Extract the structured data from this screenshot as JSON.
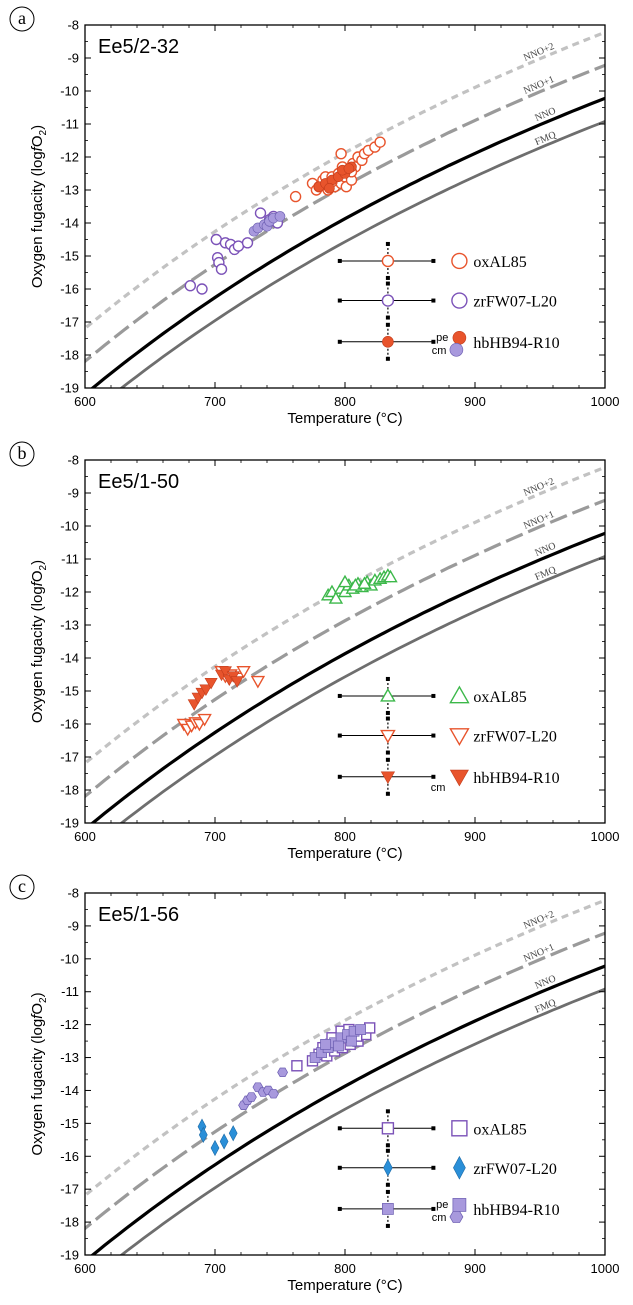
{
  "colors": {
    "orange": "#e8542c",
    "purple": "#7b52b8",
    "purple_fill": "#a899dd",
    "green": "#3cb84a",
    "blue": "#2a8fd8",
    "buffer_nno": "#000000",
    "buffer_fmq": "#6e6e6e",
    "buffer_nno1": "#9a9a9a",
    "buffer_nno2": "#c2c2c2"
  },
  "chart_data": [
    {
      "type": "scatter",
      "panel_letter": "a",
      "title": "Ee5/2-32",
      "xlabel": "Temperature (°C)",
      "ylabel_main": "Oxygen fugacity (log",
      "ylabel_italic": "f",
      "ylabel_o": "O",
      "ylabel_sub": "2",
      "ylabel_close": ")",
      "xlim": [
        600,
        1000
      ],
      "ylim": [
        -19,
        -8
      ],
      "xticks": [
        "600",
        "700",
        "800",
        "900",
        "1000"
      ],
      "yticks": [
        "-19",
        "-18",
        "-17",
        "-16",
        "-15",
        "-14",
        "-13",
        "-12",
        "-11",
        "-10",
        "-9",
        "-8"
      ],
      "buffers": [
        {
          "name": "NNO+2",
          "offset": 2
        },
        {
          "name": "NNO+1",
          "offset": 1
        },
        {
          "name": "NNO",
          "offset": 0
        },
        {
          "name": "FMQ",
          "offset": -0.7
        }
      ],
      "legend": [
        {
          "label": "oxAL85",
          "y": -15.15,
          "cross_marker": "circle-open",
          "cross_color": "orange",
          "markers": [
            "circle-open"
          ],
          "mcolor": "orange"
        },
        {
          "label": "zrFW07-L20",
          "y": -16.35,
          "cross_marker": "circle-open",
          "cross_color": "purple",
          "markers": [
            "circle-open"
          ],
          "mcolor": "purple"
        },
        {
          "label": "hbHB94-R10",
          "y": -17.6,
          "cross_marker": "circle-fill",
          "cross_color": "orange",
          "markers": [
            "circle-fill",
            "circle-fill-purple"
          ],
          "mcolor": "orange",
          "tag1": "pe",
          "tag2": "cm"
        }
      ],
      "series": [
        {
          "name": "oxAL85",
          "marker": "circle-open",
          "color": "orange",
          "x": [
            762,
            775,
            778,
            780,
            783,
            785,
            787,
            788,
            790,
            792,
            793,
            795,
            797,
            798,
            800,
            801,
            803,
            805,
            806,
            808,
            810,
            813,
            815,
            818,
            823,
            827,
            797,
            790,
            786,
            805
          ],
          "y": [
            -13.2,
            -12.8,
            -13.0,
            -12.9,
            -12.7,
            -12.6,
            -13.0,
            -12.8,
            -12.6,
            -12.9,
            -12.7,
            -12.5,
            -12.8,
            -12.3,
            -12.6,
            -12.9,
            -12.5,
            -12.7,
            -12.2,
            -12.3,
            -12.0,
            -12.1,
            -11.9,
            -11.8,
            -11.7,
            -11.55,
            -11.9,
            -12.75,
            -12.85,
            -12.45
          ]
        },
        {
          "name": "hb pe",
          "marker": "circle-fill",
          "color": "orange",
          "x": [
            780,
            785,
            790,
            795,
            800,
            805,
            788,
            798,
            803
          ],
          "y": [
            -12.9,
            -12.8,
            -12.7,
            -12.6,
            -12.5,
            -12.3,
            -12.95,
            -12.4,
            -12.35
          ]
        },
        {
          "name": "zrFW07-L20",
          "marker": "circle-open",
          "color": "purple",
          "x": [
            681,
            690,
            701,
            702,
            703,
            705,
            708,
            712,
            715,
            718,
            725,
            735,
            742,
            745,
            748
          ],
          "y": [
            -15.9,
            -16.0,
            -14.5,
            -15.05,
            -15.2,
            -15.4,
            -14.6,
            -14.65,
            -14.8,
            -14.7,
            -14.6,
            -13.7,
            -13.9,
            -13.8,
            -14.0
          ]
        },
        {
          "name": "hb cm",
          "marker": "circle-fill",
          "color": "purple_fill",
          "x": [
            730,
            733,
            738,
            740,
            742,
            745,
            750
          ],
          "y": [
            -14.25,
            -14.15,
            -14.05,
            -14.1,
            -13.95,
            -13.85,
            -13.8
          ]
        }
      ]
    },
    {
      "type": "scatter",
      "panel_letter": "b",
      "title": "Ee5/1-50",
      "xlabel": "Temperature (°C)",
      "ylabel_main": "Oxygen fugacity (log",
      "ylabel_italic": "f",
      "ylabel_o": "O",
      "ylabel_sub": "2",
      "ylabel_close": ")",
      "xlim": [
        600,
        1000
      ],
      "ylim": [
        -19,
        -8
      ],
      "xticks": [
        "600",
        "700",
        "800",
        "900",
        "1000"
      ],
      "yticks": [
        "-19",
        "-18",
        "-17",
        "-16",
        "-15",
        "-14",
        "-13",
        "-12",
        "-11",
        "-10",
        "-9",
        "-8"
      ],
      "buffers": [
        {
          "name": "NNO+2",
          "offset": 2
        },
        {
          "name": "NNO+1",
          "offset": 1
        },
        {
          "name": "NNO",
          "offset": 0
        },
        {
          "name": "FMQ",
          "offset": -0.7
        }
      ],
      "legend": [
        {
          "label": "oxAL85",
          "y": -15.15,
          "cross_marker": "triangle-up-open",
          "cross_color": "green",
          "markers": [
            "triangle-up-open"
          ],
          "mcolor": "green"
        },
        {
          "label": "zrFW07-L20",
          "y": -16.35,
          "cross_marker": "triangle-down-open",
          "cross_color": "orange",
          "markers": [
            "triangle-down-open"
          ],
          "mcolor": "orange"
        },
        {
          "label": "hbHB94-R10",
          "y": -17.6,
          "cross_marker": "triangle-down-fill",
          "cross_color": "orange",
          "markers": [
            "triangle-down-fill"
          ],
          "mcolor": "orange",
          "tag2": "cm"
        }
      ],
      "series": [
        {
          "name": "oxAL85",
          "marker": "triangle-up-open",
          "color": "green",
          "x": [
            787,
            790,
            793,
            797,
            800,
            803,
            806,
            810,
            813,
            817,
            820,
            823,
            827,
            830,
            833,
            835,
            800,
            808,
            815
          ],
          "y": [
            -12.1,
            -12.0,
            -12.2,
            -11.9,
            -12.0,
            -11.8,
            -11.9,
            -11.75,
            -11.85,
            -11.7,
            -11.8,
            -11.65,
            -11.6,
            -11.55,
            -11.5,
            -11.55,
            -11.7,
            -11.8,
            -11.75
          ]
        },
        {
          "name": "zrFW07-L20",
          "marker": "triangle-down-open",
          "color": "orange",
          "x": [
            676,
            679,
            682,
            685,
            688,
            692,
            705,
            708,
            712,
            718,
            722,
            733
          ],
          "y": [
            -16.0,
            -16.15,
            -16.05,
            -15.95,
            -16.0,
            -15.85,
            -14.4,
            -14.55,
            -14.5,
            -14.6,
            -14.4,
            -14.7
          ]
        },
        {
          "name": "hbHB94-R10",
          "marker": "triangle-down-fill",
          "color": "orange",
          "x": [
            684,
            687,
            690,
            693,
            697,
            705,
            708,
            711,
            714,
            717
          ],
          "y": [
            -15.4,
            -15.2,
            -15.05,
            -14.95,
            -14.75,
            -14.5,
            -14.4,
            -14.65,
            -14.55,
            -14.7
          ]
        }
      ]
    },
    {
      "type": "scatter",
      "panel_letter": "c",
      "title": "Ee5/1-56",
      "xlabel": "Temperature (°C)",
      "ylabel_main": "Oxygen fugacity (log",
      "ylabel_italic": "f",
      "ylabel_o": "O",
      "ylabel_sub": "2",
      "ylabel_close": ")",
      "xlim": [
        600,
        1000
      ],
      "ylim": [
        -19,
        -8
      ],
      "xticks": [
        "600",
        "700",
        "800",
        "900",
        "1000"
      ],
      "yticks": [
        "-19",
        "-18",
        "-17",
        "-16",
        "-15",
        "-14",
        "-13",
        "-12",
        "-11",
        "-10",
        "-9",
        "-8"
      ],
      "buffers": [
        {
          "name": "NNO+2",
          "offset": 2
        },
        {
          "name": "NNO+1",
          "offset": 1
        },
        {
          "name": "NNO",
          "offset": 0
        },
        {
          "name": "FMQ",
          "offset": -0.7
        }
      ],
      "legend": [
        {
          "label": "oxAL85",
          "y": -15.15,
          "cross_marker": "square-open",
          "cross_color": "purple",
          "markers": [
            "square-open"
          ],
          "mcolor": "purple"
        },
        {
          "label": "zrFW07-L20",
          "y": -16.35,
          "cross_marker": "diamond-fill",
          "cross_color": "blue",
          "markers": [
            "diamond-fill"
          ],
          "mcolor": "blue"
        },
        {
          "label": "hbHB94-R10",
          "y": -17.6,
          "cross_marker": "square-fill",
          "cross_color": "purple_fill",
          "markers": [
            "square-fill",
            "hexagon-fill"
          ],
          "mcolor": "purple_fill",
          "tag1": "pe",
          "tag2": "cm"
        }
      ],
      "series": [
        {
          "name": "oxAL85",
          "marker": "square-open",
          "color": "purple",
          "x": [
            763,
            775,
            780,
            783,
            786,
            789,
            792,
            795,
            798,
            801,
            804,
            807,
            810,
            813,
            816,
            819,
            790,
            797,
            803,
            809
          ],
          "y": [
            -13.25,
            -13.1,
            -12.9,
            -12.7,
            -12.95,
            -12.6,
            -12.8,
            -12.5,
            -12.7,
            -12.4,
            -12.6,
            -12.3,
            -12.5,
            -12.2,
            -12.3,
            -12.1,
            -12.4,
            -12.2,
            -12.15,
            -12.35
          ]
        },
        {
          "name": "hb pe",
          "marker": "square-fill",
          "color": "purple_fill",
          "x": [
            777,
            782,
            787,
            792,
            797,
            802,
            807,
            812,
            785,
            795,
            805
          ],
          "y": [
            -13.0,
            -12.85,
            -12.7,
            -12.55,
            -12.4,
            -12.3,
            -12.2,
            -12.15,
            -12.6,
            -12.65,
            -12.5
          ]
        },
        {
          "name": "hb cm",
          "marker": "hexagon-fill",
          "color": "purple_fill",
          "x": [
            722,
            725,
            728,
            733,
            737,
            741,
            745,
            752
          ],
          "y": [
            -14.45,
            -14.3,
            -14.2,
            -13.9,
            -14.05,
            -14.0,
            -14.1,
            -13.45
          ]
        },
        {
          "name": "zrFW07-L20",
          "marker": "diamond-fill",
          "color": "blue",
          "x": [
            690,
            691,
            700,
            707,
            714
          ],
          "y": [
            -15.1,
            -15.35,
            -15.75,
            -15.55,
            -15.3
          ]
        }
      ]
    }
  ]
}
